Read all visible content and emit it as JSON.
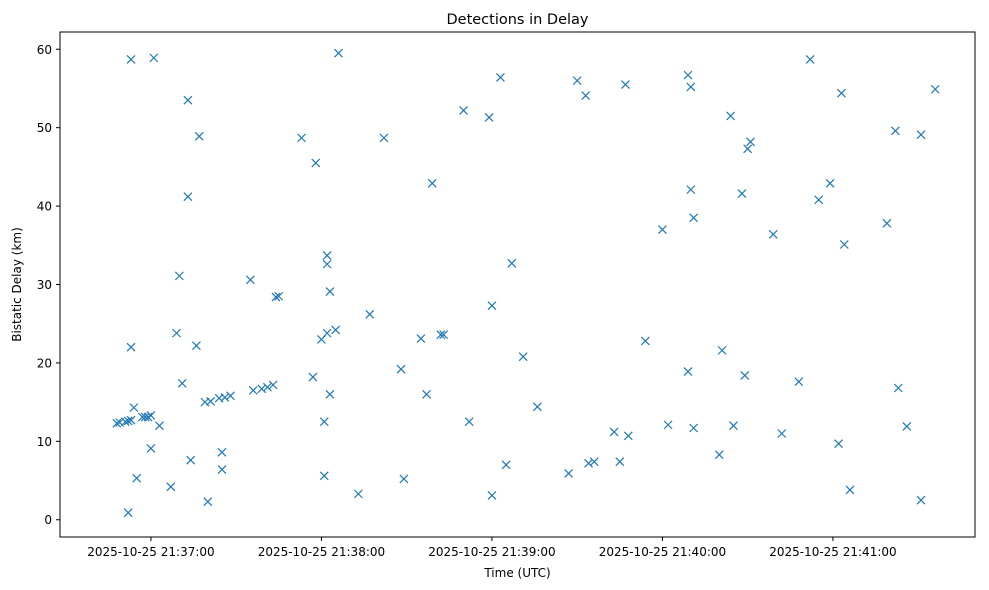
{
  "chart_data": {
    "type": "scatter",
    "title": "Detections in Delay",
    "xlabel": "Time (UTC)",
    "ylabel": "Bistatic Delay (km)",
    "x_unit": "time of day 2025-10-25 (UTC)",
    "xlim": [
      "21:36:28",
      "21:41:50"
    ],
    "ylim": [
      -2.2,
      62.2
    ],
    "grid": false,
    "marker": "x",
    "color": "#1f77b4",
    "x_ticks": [
      {
        "value": "21:37:00",
        "label": "2025-10-25 21:37:00"
      },
      {
        "value": "21:38:00",
        "label": "2025-10-25 21:38:00"
      },
      {
        "value": "21:39:00",
        "label": "2025-10-25 21:39:00"
      },
      {
        "value": "21:40:00",
        "label": "2025-10-25 21:40:00"
      },
      {
        "value": "21:41:00",
        "label": "2025-10-25 21:41:00"
      }
    ],
    "y_ticks": [
      0,
      10,
      20,
      30,
      40,
      50,
      60
    ],
    "points": [
      {
        "x": "21:36:48",
        "y": 12.3
      },
      {
        "x": "21:36:49",
        "y": 12.4
      },
      {
        "x": "21:36:51",
        "y": 12.5
      },
      {
        "x": "21:36:52",
        "y": 0.9
      },
      {
        "x": "21:36:52",
        "y": 12.6
      },
      {
        "x": "21:36:53",
        "y": 22.0
      },
      {
        "x": "21:36:53",
        "y": 12.7
      },
      {
        "x": "21:36:53",
        "y": 58.7
      },
      {
        "x": "21:36:54",
        "y": 14.3
      },
      {
        "x": "21:36:55",
        "y": 5.3
      },
      {
        "x": "21:36:57",
        "y": 13.1
      },
      {
        "x": "21:36:58",
        "y": 13.1
      },
      {
        "x": "21:36:59",
        "y": 13.1
      },
      {
        "x": "21:37:00",
        "y": 9.1
      },
      {
        "x": "21:37:00",
        "y": 13.3
      },
      {
        "x": "21:37:01",
        "y": 58.9
      },
      {
        "x": "21:37:03",
        "y": 12.0
      },
      {
        "x": "21:37:07",
        "y": 4.2
      },
      {
        "x": "21:37:09",
        "y": 23.8
      },
      {
        "x": "21:37:10",
        "y": 31.1
      },
      {
        "x": "21:37:11",
        "y": 17.4
      },
      {
        "x": "21:37:13",
        "y": 53.5
      },
      {
        "x": "21:37:13",
        "y": 41.2
      },
      {
        "x": "21:37:14",
        "y": 7.6
      },
      {
        "x": "21:37:16",
        "y": 22.2
      },
      {
        "x": "21:37:17",
        "y": 48.9
      },
      {
        "x": "21:37:19",
        "y": 15.0
      },
      {
        "x": "21:37:20",
        "y": 2.3
      },
      {
        "x": "21:37:21",
        "y": 15.1
      },
      {
        "x": "21:37:24",
        "y": 15.5
      },
      {
        "x": "21:37:25",
        "y": 6.4
      },
      {
        "x": "21:37:25",
        "y": 8.6
      },
      {
        "x": "21:37:26",
        "y": 15.6
      },
      {
        "x": "21:37:28",
        "y": 15.8
      },
      {
        "x": "21:37:35",
        "y": 30.6
      },
      {
        "x": "21:37:36",
        "y": 16.5
      },
      {
        "x": "21:37:39",
        "y": 16.7
      },
      {
        "x": "21:37:41",
        "y": 16.9
      },
      {
        "x": "21:37:43",
        "y": 17.2
      },
      {
        "x": "21:37:44",
        "y": 28.4
      },
      {
        "x": "21:37:45",
        "y": 28.5
      },
      {
        "x": "21:37:53",
        "y": 48.7
      },
      {
        "x": "21:37:57",
        "y": 18.2
      },
      {
        "x": "21:37:58",
        "y": 45.5
      },
      {
        "x": "21:38:00",
        "y": 23.0
      },
      {
        "x": "21:38:01",
        "y": 12.5
      },
      {
        "x": "21:38:01",
        "y": 5.6
      },
      {
        "x": "21:38:02",
        "y": 32.6
      },
      {
        "x": "21:38:02",
        "y": 33.7
      },
      {
        "x": "21:38:02",
        "y": 23.8
      },
      {
        "x": "21:38:03",
        "y": 29.1
      },
      {
        "x": "21:38:03",
        "y": 16.0
      },
      {
        "x": "21:38:05",
        "y": 24.2
      },
      {
        "x": "21:38:06",
        "y": 59.5
      },
      {
        "x": "21:38:13",
        "y": 3.3
      },
      {
        "x": "21:38:17",
        "y": 26.2
      },
      {
        "x": "21:38:22",
        "y": 48.7
      },
      {
        "x": "21:38:28",
        "y": 19.2
      },
      {
        "x": "21:38:29",
        "y": 5.2
      },
      {
        "x": "21:38:35",
        "y": 23.1
      },
      {
        "x": "21:38:37",
        "y": 16.0
      },
      {
        "x": "21:38:39",
        "y": 42.9
      },
      {
        "x": "21:38:42",
        "y": 23.6
      },
      {
        "x": "21:38:43",
        "y": 23.6
      },
      {
        "x": "21:38:50",
        "y": 52.2
      },
      {
        "x": "21:38:52",
        "y": 12.5
      },
      {
        "x": "21:38:59",
        "y": 51.3
      },
      {
        "x": "21:39:00",
        "y": 3.1
      },
      {
        "x": "21:39:00",
        "y": 27.3
      },
      {
        "x": "21:39:03",
        "y": 56.4
      },
      {
        "x": "21:39:05",
        "y": 7.0
      },
      {
        "x": "21:39:07",
        "y": 32.7
      },
      {
        "x": "21:39:11",
        "y": 20.8
      },
      {
        "x": "21:39:16",
        "y": 14.4
      },
      {
        "x": "21:39:27",
        "y": 5.9
      },
      {
        "x": "21:39:30",
        "y": 56.0
      },
      {
        "x": "21:39:33",
        "y": 54.1
      },
      {
        "x": "21:39:34",
        "y": 7.2
      },
      {
        "x": "21:39:36",
        "y": 7.4
      },
      {
        "x": "21:39:43",
        "y": 11.2
      },
      {
        "x": "21:39:45",
        "y": 7.4
      },
      {
        "x": "21:39:47",
        "y": 55.5
      },
      {
        "x": "21:39:48",
        "y": 10.7
      },
      {
        "x": "21:39:54",
        "y": 22.8
      },
      {
        "x": "21:40:00",
        "y": 37.0
      },
      {
        "x": "21:40:02",
        "y": 12.1
      },
      {
        "x": "21:40:09",
        "y": 18.9
      },
      {
        "x": "21:40:09",
        "y": 56.7
      },
      {
        "x": "21:40:10",
        "y": 55.2
      },
      {
        "x": "21:40:10",
        "y": 42.1
      },
      {
        "x": "21:40:11",
        "y": 38.5
      },
      {
        "x": "21:40:11",
        "y": 11.7
      },
      {
        "x": "21:40:20",
        "y": 8.3
      },
      {
        "x": "21:40:21",
        "y": 21.6
      },
      {
        "x": "21:40:24",
        "y": 51.5
      },
      {
        "x": "21:40:25",
        "y": 12.0
      },
      {
        "x": "21:40:28",
        "y": 41.6
      },
      {
        "x": "21:40:29",
        "y": 18.4
      },
      {
        "x": "21:40:30",
        "y": 47.3
      },
      {
        "x": "21:40:31",
        "y": 48.2
      },
      {
        "x": "21:40:39",
        "y": 36.4
      },
      {
        "x": "21:40:42",
        "y": 11.0
      },
      {
        "x": "21:40:48",
        "y": 17.6
      },
      {
        "x": "21:40:52",
        "y": 58.7
      },
      {
        "x": "21:40:55",
        "y": 40.8
      },
      {
        "x": "21:40:59",
        "y": 42.9
      },
      {
        "x": "21:41:02",
        "y": 9.7
      },
      {
        "x": "21:41:03",
        "y": 54.4
      },
      {
        "x": "21:41:04",
        "y": 35.1
      },
      {
        "x": "21:41:06",
        "y": 3.8
      },
      {
        "x": "21:41:19",
        "y": 37.8
      },
      {
        "x": "21:41:22",
        "y": 49.6
      },
      {
        "x": "21:41:23",
        "y": 16.8
      },
      {
        "x": "21:41:26",
        "y": 11.9
      },
      {
        "x": "21:41:31",
        "y": 49.1
      },
      {
        "x": "21:41:31",
        "y": 2.5
      },
      {
        "x": "21:41:36",
        "y": 54.9
      }
    ]
  }
}
